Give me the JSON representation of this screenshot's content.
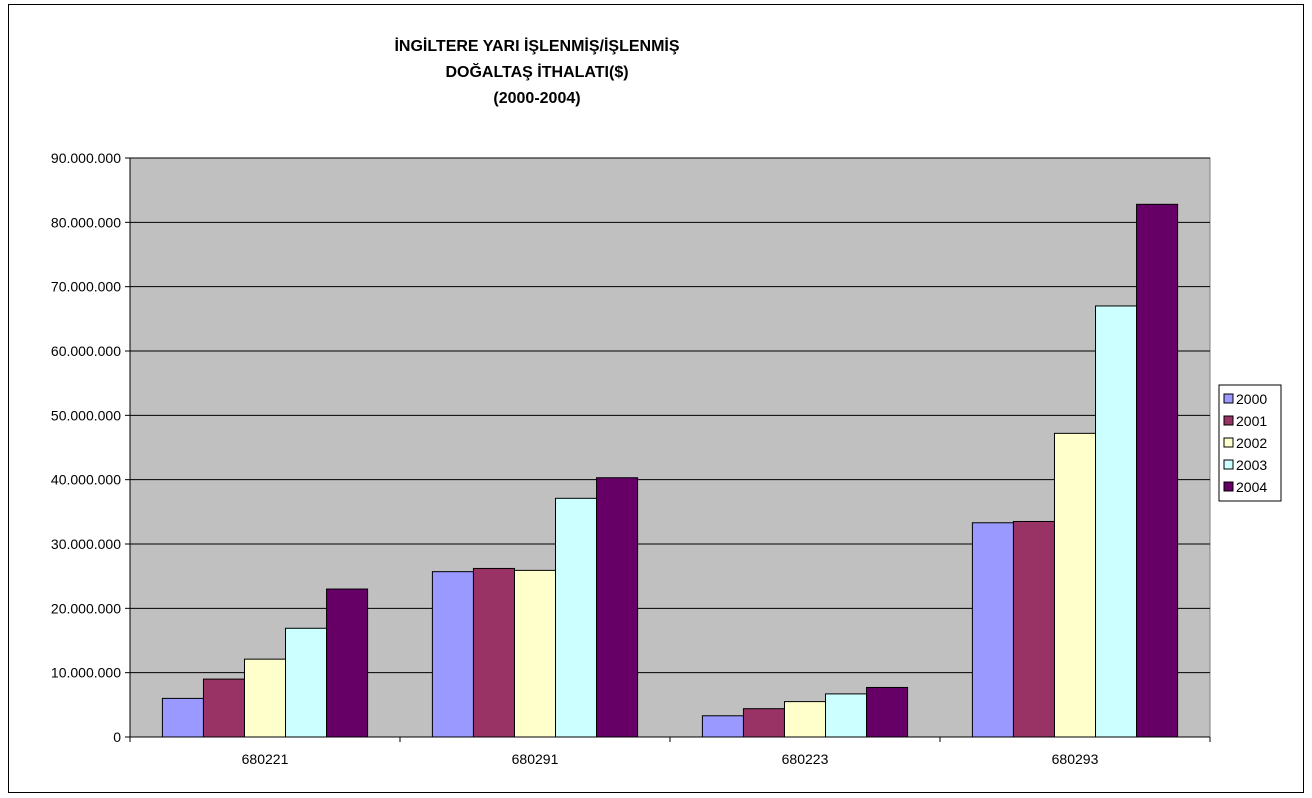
{
  "chart_data": {
    "type": "bar",
    "title_lines": [
      "İNGİLTERE YARI İŞLENMİŞ/İŞLENMİŞ",
      "DOĞALTAŞ İTHALATI($)",
      "(2000-2004)"
    ],
    "xlabel": "",
    "ylabel": "",
    "categories": [
      "680221",
      "680291",
      "680223",
      "680293"
    ],
    "ylim": [
      0,
      90000000
    ],
    "yticks": [
      0,
      10000000,
      20000000,
      30000000,
      40000000,
      50000000,
      60000000,
      70000000,
      80000000,
      90000000
    ],
    "ytick_labels": [
      "0",
      "10.000.000",
      "20.000.000",
      "30.000.000",
      "40.000.000",
      "50.000.000",
      "60.000.000",
      "70.000.000",
      "80.000.000",
      "90.000.000"
    ],
    "grid": true,
    "legend_position": "right",
    "plot_background": "#c0c0c0",
    "series": [
      {
        "name": "2000",
        "color": "#9999ff",
        "values": [
          6000000,
          25700000,
          3300000,
          33300000
        ]
      },
      {
        "name": "2001",
        "color": "#993366",
        "values": [
          9000000,
          26200000,
          4400000,
          33500000
        ]
      },
      {
        "name": "2002",
        "color": "#ffffcc",
        "values": [
          12100000,
          25900000,
          5500000,
          47200000
        ]
      },
      {
        "name": "2003",
        "color": "#ccffff",
        "values": [
          16900000,
          37100000,
          6700000,
          67000000
        ]
      },
      {
        "name": "2004",
        "color": "#660066",
        "values": [
          23000000,
          40300000,
          7700000,
          82800000
        ]
      }
    ]
  }
}
